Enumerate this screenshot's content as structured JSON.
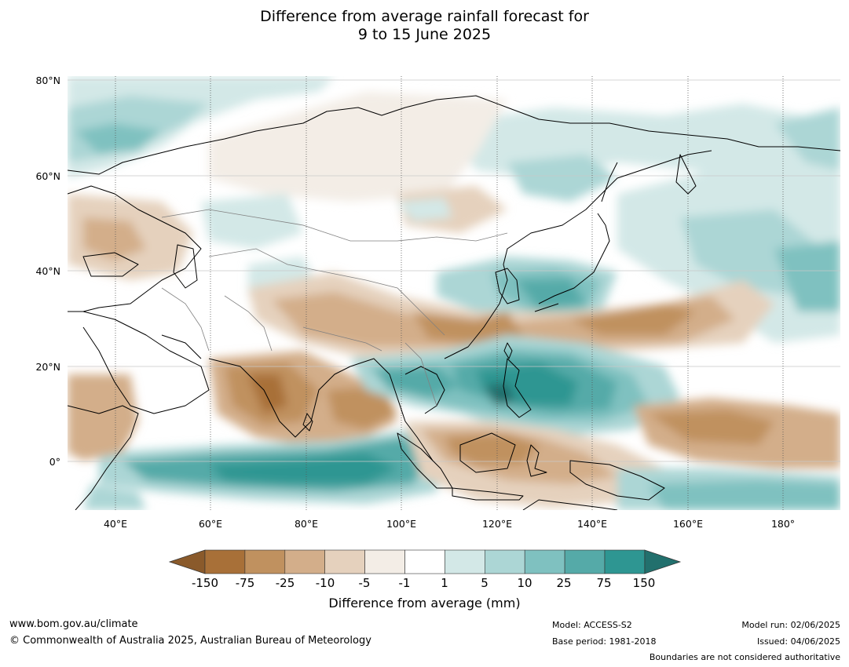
{
  "title_line1": "Difference from average rainfall forecast for",
  "title_line2": "9 to 15 June 2025",
  "map": {
    "lon_range": [
      30,
      192
    ],
    "lat_range": [
      -10,
      81
    ],
    "lat_labels": [
      "80°N",
      "60°N",
      "40°N",
      "20°N",
      "0°"
    ],
    "lon_labels": [
      "40°E",
      "60°E",
      "80°E",
      "100°E",
      "120°E",
      "140°E",
      "160°E",
      "180°"
    ]
  },
  "colorbar": {
    "title": "Difference from average (mm)",
    "tick_labels": [
      "-150",
      "-75",
      "-25",
      "-10",
      "-5",
      "-1",
      "1",
      "5",
      "10",
      "25",
      "75",
      "150"
    ],
    "colors": {
      "extend_low": "#8a5a2b",
      "bins": [
        "#a87038",
        "#c0915f",
        "#d3ae8a",
        "#e5d1bd",
        "#f3ede6",
        "#ffffff",
        "#d3e8e7",
        "#acd6d5",
        "#7fc1c0",
        "#55aaa8",
        "#2e9692"
      ],
      "extend_high": "#22706d"
    }
  },
  "footer": {
    "website": "www.bom.gov.au/climate",
    "copyright": "© Commonwealth of Australia 2025, Australian Bureau of Meteorology",
    "model": "Model: ACCESS-S2",
    "base_period": "Base period: 1981-2018",
    "model_run": "Model run: 02/06/2025",
    "issued": "Issued: 04/06/2025",
    "boundaries_note": "Boundaries are not considered authoritative"
  }
}
